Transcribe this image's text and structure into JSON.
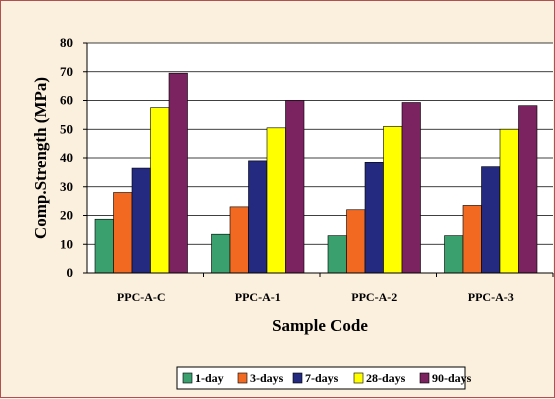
{
  "chart_data": {
    "type": "bar",
    "title": "",
    "xlabel": "Sample Code",
    "ylabel": "Comp.Strength (MPa)",
    "ylim": [
      0,
      80
    ],
    "yticks": [
      0,
      10,
      20,
      30,
      40,
      50,
      60,
      70,
      80
    ],
    "grid": true,
    "legend_position": "bottom",
    "categories": [
      "PPC-A-C",
      "PPC-A-1",
      "PPC-A-2",
      "PPC-A-3"
    ],
    "series": [
      {
        "name": "1-day",
        "color": "#3aa06e",
        "values": [
          18.7,
          13.5,
          13.0,
          13.0
        ]
      },
      {
        "name": "3-days",
        "color": "#f26a21",
        "values": [
          28.0,
          23.0,
          22.0,
          23.5
        ]
      },
      {
        "name": "7-days",
        "color": "#232a80",
        "values": [
          36.5,
          39.0,
          38.5,
          37.0
        ]
      },
      {
        "name": "28-days",
        "color": "#ffff00",
        "values": [
          57.5,
          50.5,
          51.0,
          50.0
        ]
      },
      {
        "name": "90-days",
        "color": "#7a2360",
        "values": [
          69.5,
          60.0,
          59.3,
          58.2
        ]
      }
    ]
  }
}
